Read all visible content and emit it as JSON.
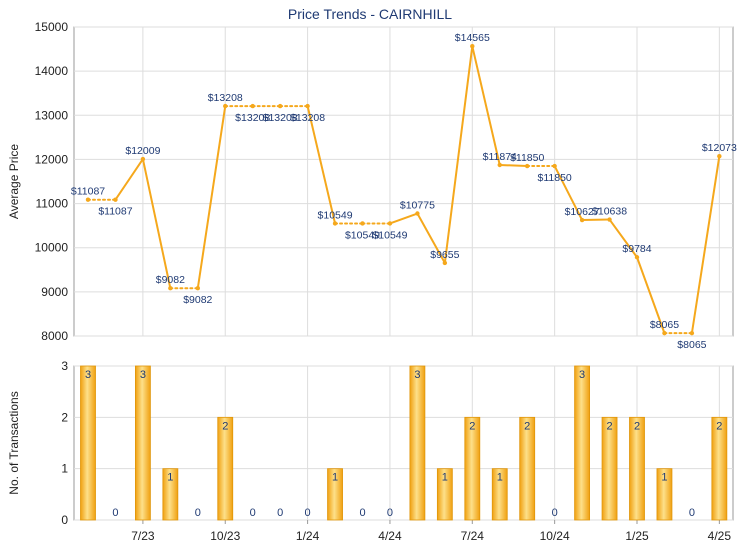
{
  "chart_data": [
    {
      "type": "line",
      "title": "Price Trends - CAIRNHILL",
      "ylabel": "Average Price",
      "ylim": [
        8000,
        15000
      ],
      "yticks": [
        8000,
        9000,
        10000,
        11000,
        12000,
        13000,
        14000,
        15000
      ],
      "grid": true,
      "colors": {
        "line": "#f5a81c",
        "dashed": "#f5a81c",
        "label": "#1f3a73"
      },
      "x": [
        "5/23",
        "6/23",
        "7/23",
        "8/23",
        "9/23",
        "10/23",
        "11/23",
        "12/23",
        "1/24",
        "2/24",
        "3/24",
        "4/24",
        "5/24",
        "6/24",
        "7/24",
        "8/24",
        "9/24",
        "10/24",
        "11/24",
        "12/24",
        "1/25",
        "2/25",
        "3/25",
        "4/25"
      ],
      "values": [
        11087,
        11087,
        12009,
        9082,
        9082,
        13208,
        13208,
        13208,
        13208,
        10549,
        10549,
        10549,
        10775,
        9655,
        14565,
        11874,
        11850,
        11850,
        10627,
        10638,
        9784,
        8065,
        8065,
        12073
      ],
      "labels": [
        "$11087",
        "$11087",
        "$12009",
        "$9082",
        "$9082",
        "$13208",
        "$13208",
        "$13208",
        "$13208",
        "$10549",
        "$10549",
        "$10549",
        "$10775",
        "$9655",
        "$14565",
        "$11874",
        "$11850",
        "$11850",
        "$10627",
        "$10638",
        "$9784",
        "$8065",
        "$8065",
        "$12073"
      ]
    },
    {
      "type": "bar",
      "ylabel": "No. of Transactions",
      "ylim": [
        0,
        3
      ],
      "yticks": [
        0,
        1,
        2,
        3
      ],
      "xticks": [
        "7/23",
        "10/23",
        "1/24",
        "4/24",
        "7/24",
        "10/24",
        "1/25",
        "4/25"
      ],
      "values": [
        3,
        0,
        3,
        1,
        0,
        2,
        0,
        0,
        0,
        1,
        0,
        0,
        3,
        1,
        2,
        1,
        2,
        0,
        3,
        2,
        2,
        1,
        0,
        2
      ],
      "colors": {
        "bar": "#f5a81c",
        "bar_light": "#fde08a",
        "label": "#1f3a73"
      }
    }
  ]
}
